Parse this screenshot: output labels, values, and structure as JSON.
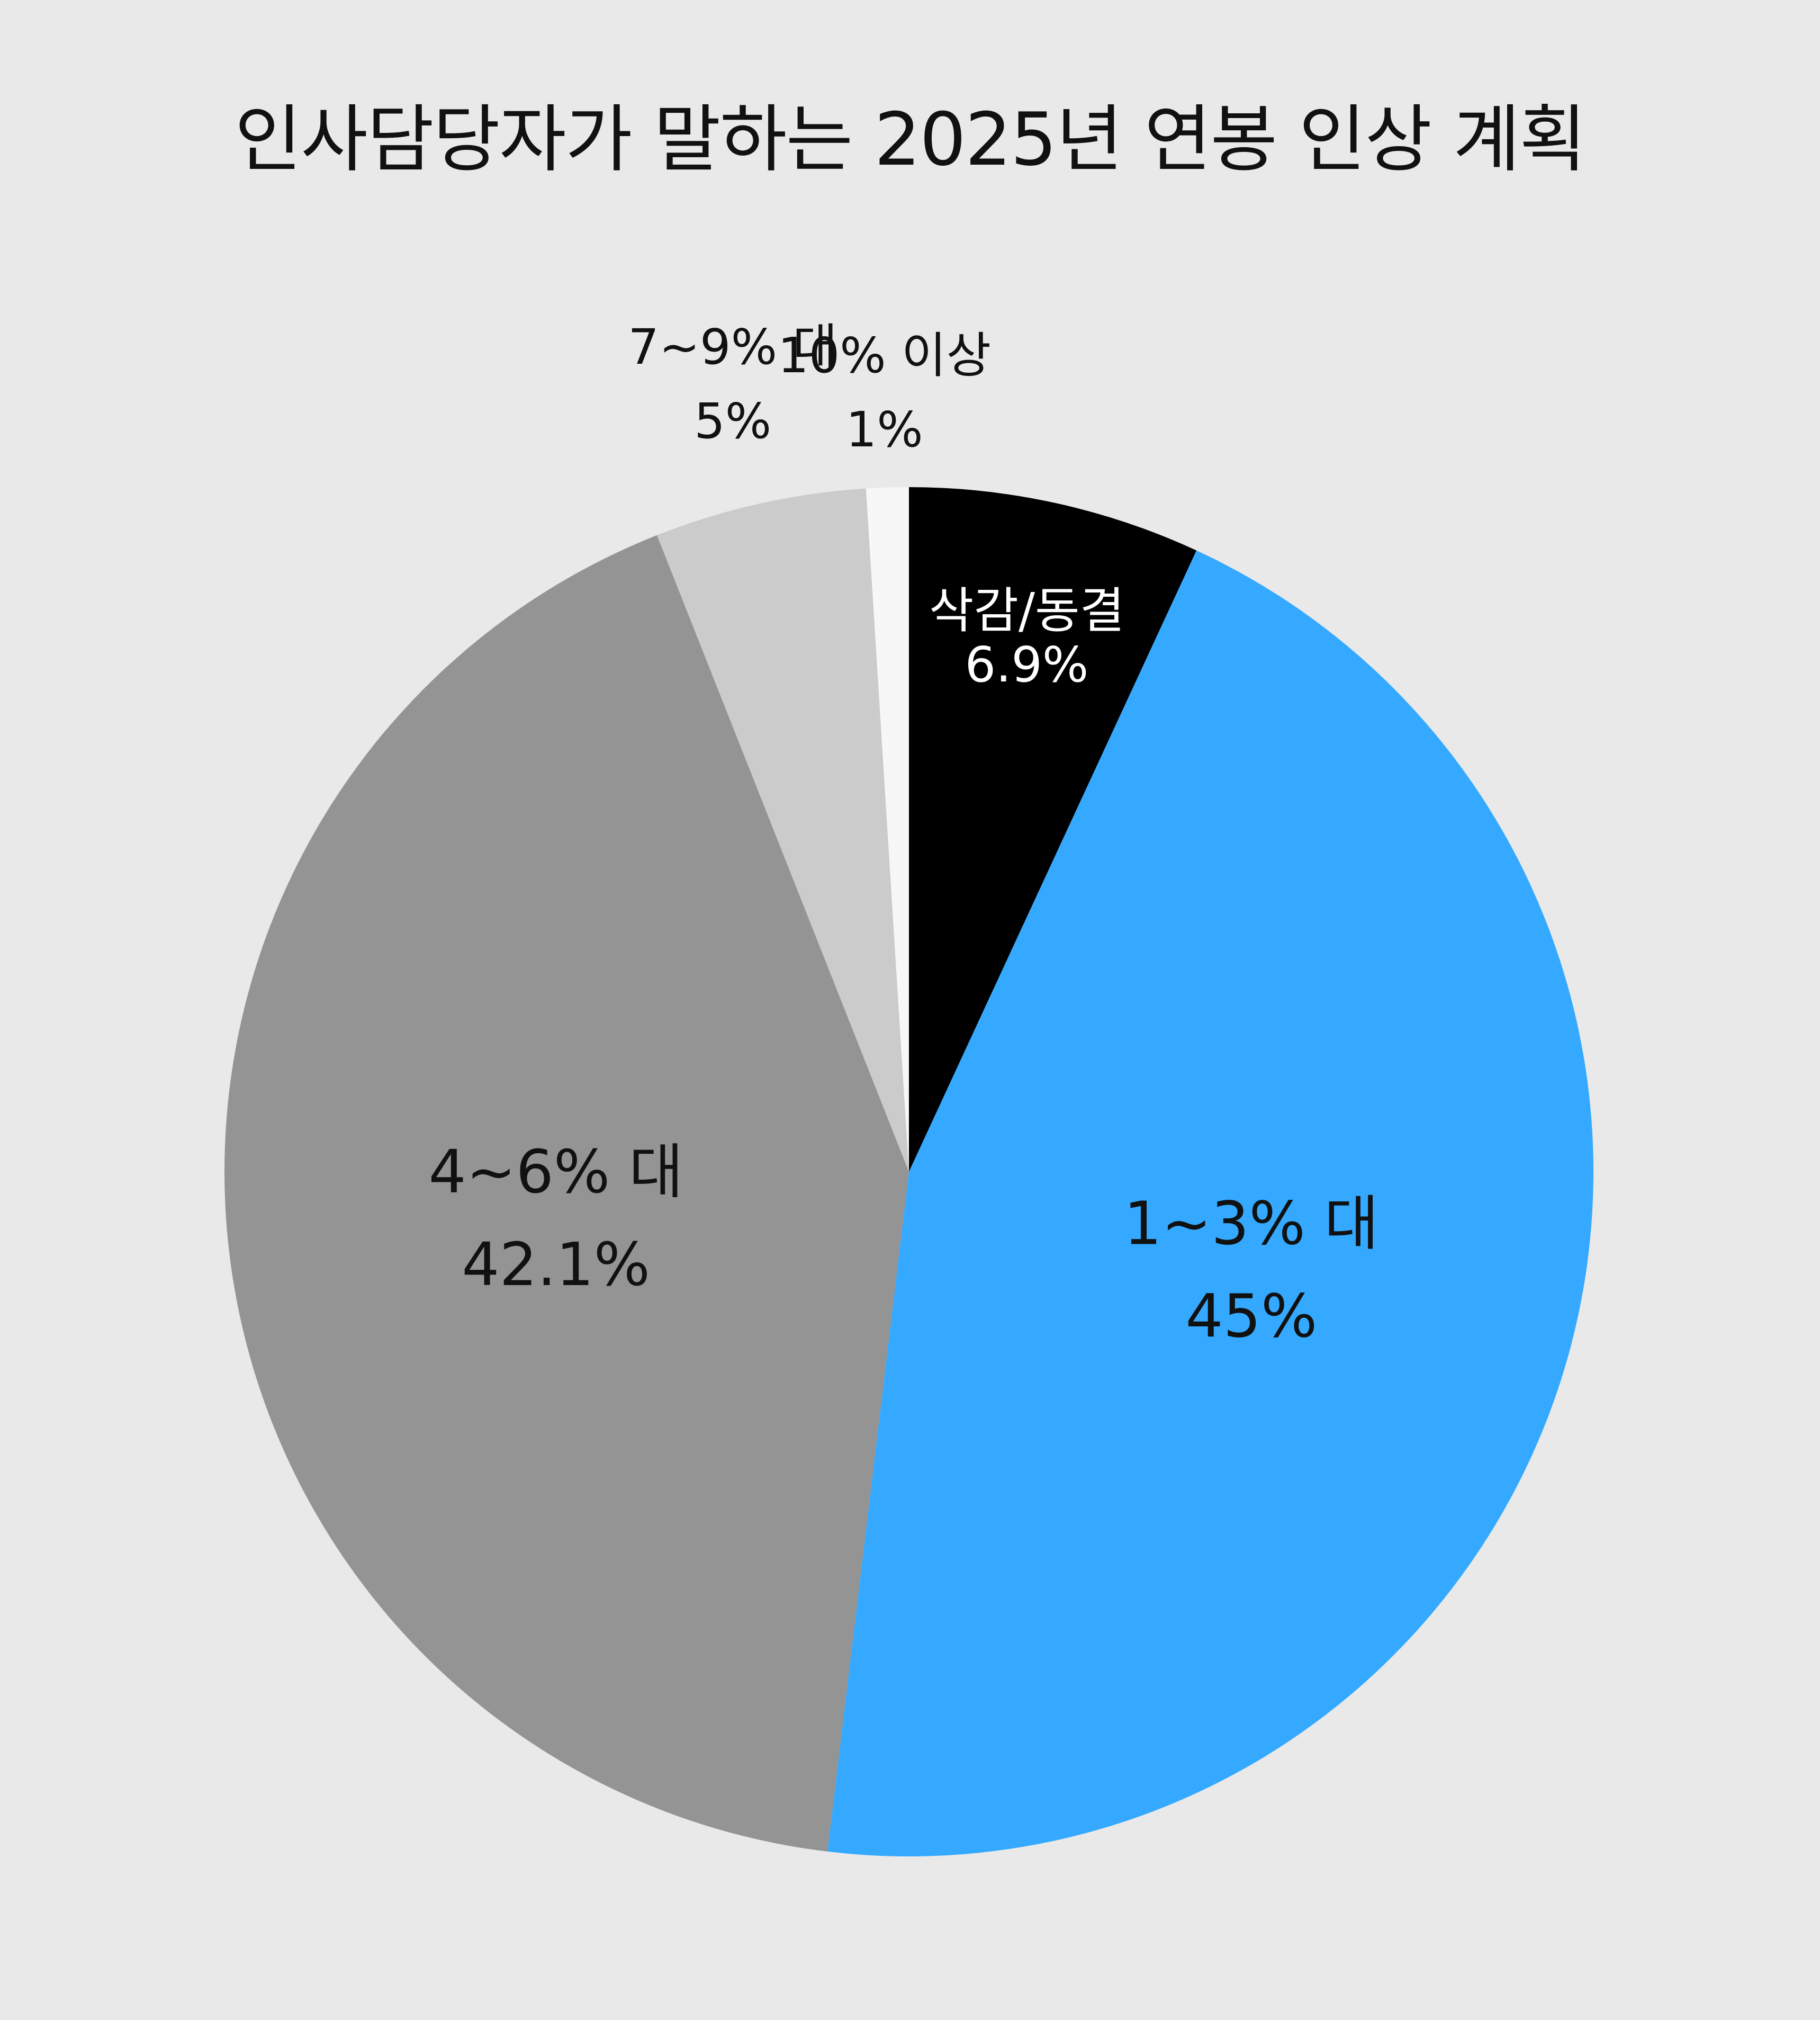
{
  "chart_data": {
    "type": "pie",
    "title": "인사담당자가 말하는 2025년 연봉 인상 계획",
    "start_angle_deg": 0,
    "direction": "clockwise",
    "slices": [
      {
        "label": "삭감/동결",
        "value": 6.9,
        "value_label": "6.9%",
        "color": "#000000",
        "label_color": "#ffffff"
      },
      {
        "label": "1~3% 대",
        "value": 45,
        "value_label": "45%",
        "color": "#34a9ff",
        "label_color": "#111111"
      },
      {
        "label": "4~6% 대",
        "value": 42.1,
        "value_label": "42.1%",
        "color": "#949494",
        "label_color": "#111111"
      },
      {
        "label": "7~9% 대",
        "value": 5,
        "value_label": "5%",
        "color": "#cbcbcb",
        "label_color": "#111111"
      },
      {
        "label": "10% 이상",
        "value": 1,
        "value_label": "1%",
        "color": "#f7f7f7",
        "label_color": "#111111"
      }
    ]
  }
}
